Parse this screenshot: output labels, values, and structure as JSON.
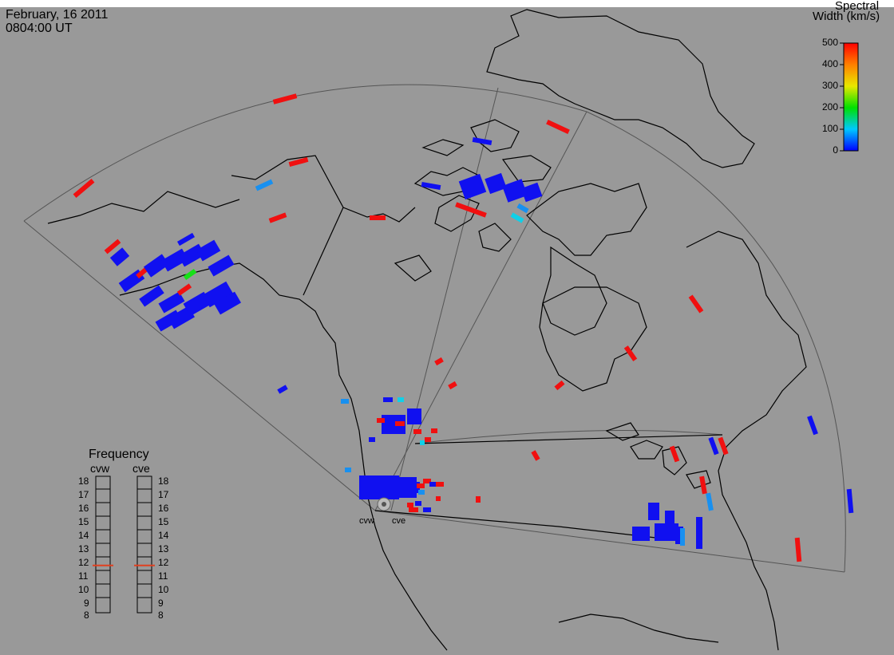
{
  "header": {
    "date": "February, 16 2011",
    "time": "0804:00 UT"
  },
  "colorbar": {
    "title_line1": "Spectral",
    "title_line2": "Width (km/s)",
    "ticks": [
      "500",
      "400",
      "300",
      "200",
      "100",
      "0"
    ],
    "range": [
      0,
      500
    ]
  },
  "frequency": {
    "title": "Frequency",
    "radars": [
      {
        "code": "cvw",
        "value": 11,
        "indicator_color": "#e04020"
      },
      {
        "code": "cve",
        "value": 11,
        "indicator_color": "#e04020"
      }
    ],
    "scale": [
      "18",
      "17",
      "16",
      "15",
      "14",
      "13",
      "12",
      "11",
      "10",
      "9",
      "8"
    ]
  },
  "sites": [
    {
      "code": "cvw"
    },
    {
      "code": "cve"
    }
  ],
  "colors": {
    "background": "#999999",
    "blue": "#1010f0",
    "red": "#f01010",
    "lightblue": "#1890f0",
    "cyan": "#10d0e8",
    "green": "#18e018",
    "coast": "#000000",
    "fov": "#444444"
  }
}
